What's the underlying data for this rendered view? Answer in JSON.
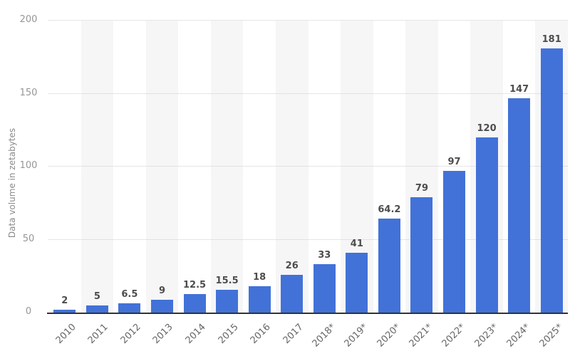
{
  "chart_data": {
    "type": "bar",
    "title": "",
    "ylabel": "Data volume in zetabytes",
    "xlabel": "",
    "categories": [
      "2010",
      "2011",
      "2012",
      "2013",
      "2014",
      "2015",
      "2016",
      "2017",
      "2018*",
      "2019*",
      "2020*",
      "2021*",
      "2022*",
      "2023*",
      "2024*",
      "2025*"
    ],
    "values": [
      2,
      5,
      6.5,
      9,
      12.5,
      15.5,
      18,
      26,
      33,
      41,
      64.2,
      79,
      97,
      120,
      147,
      181
    ],
    "bar_labels": [
      "2",
      "5",
      "6.5",
      "9",
      "12.5",
      "15.5",
      "18",
      "26",
      "33",
      "41",
      "64.2",
      "79",
      "97",
      "120",
      "147",
      "181"
    ],
    "ylim": [
      0,
      200
    ],
    "yticks": [
      0,
      50,
      100,
      150,
      200
    ],
    "grid": "horizontal-dotted",
    "legend": "none",
    "column_stripes": "alternating, starting at second column",
    "colors": {
      "bar": "#4272D8",
      "stripe": "#F6F6F7",
      "gridline": "#CCCCCC",
      "axis_line": "#333333",
      "ytick_text": "#969696",
      "xtick_text": "#666666",
      "value_label_text": "#4D4D4D",
      "ylabel_text": "#8B8B8B",
      "background": "#FFFFFF"
    }
  }
}
